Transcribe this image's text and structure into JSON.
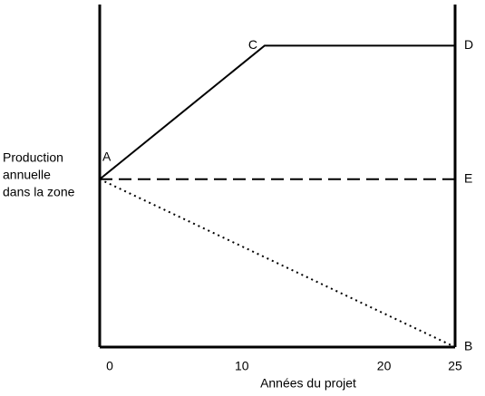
{
  "chart_data": {
    "type": "line",
    "ylabel": [
      "Production",
      "annuelle",
      "dans la zone"
    ],
    "xlabel": "Années du projet",
    "xlim": [
      0,
      25
    ],
    "xticks": [
      0,
      10,
      20,
      25
    ],
    "ylim": [
      0,
      100
    ],
    "series": [
      {
        "x": [
          0,
          11.6,
          25
        ],
        "values": [
          49,
          88,
          88
        ],
        "labels": [
          "A",
          "C",
          "D"
        ],
        "style": "solid",
        "color": "#000000"
      },
      {
        "x": [
          0,
          25
        ],
        "values": [
          49,
          49
        ],
        "labels": [
          null,
          "E"
        ],
        "style": "dashed",
        "color": "#000000"
      },
      {
        "x": [
          0,
          25
        ],
        "values": [
          49,
          0
        ],
        "labels": [
          null,
          "B"
        ],
        "style": "dotted",
        "color": "#000000"
      }
    ]
  }
}
